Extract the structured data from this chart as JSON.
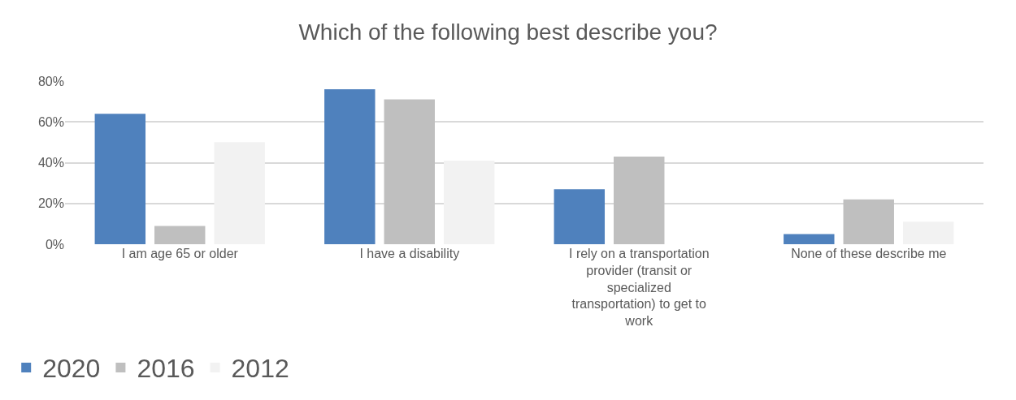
{
  "chart_data": {
    "type": "bar",
    "title": "Which of the following best describe you?",
    "categories": [
      "I am age 65 or older",
      "I have a disability",
      "I rely on a transportation provider (transit or specialized transportation) to get to work",
      "None of these describe me"
    ],
    "series": [
      {
        "name": "2020",
        "color": "#4f81bd",
        "values": [
          64,
          76,
          27,
          5
        ]
      },
      {
        "name": "2016",
        "color": "#bfbfbf",
        "values": [
          9,
          71,
          43,
          22
        ]
      },
      {
        "name": "2012",
        "color": "#f2f2f2",
        "values": [
          50,
          41,
          0,
          11
        ]
      }
    ],
    "ylim": [
      0,
      80
    ],
    "yticks": [
      {
        "value": 0,
        "label": "0%"
      },
      {
        "value": 20,
        "label": "20%"
      },
      {
        "value": 40,
        "label": "40%"
      },
      {
        "value": 60,
        "label": "60%"
      },
      {
        "value": 80,
        "label": "80%"
      }
    ],
    "grid": "y",
    "legend": "bottom left"
  }
}
